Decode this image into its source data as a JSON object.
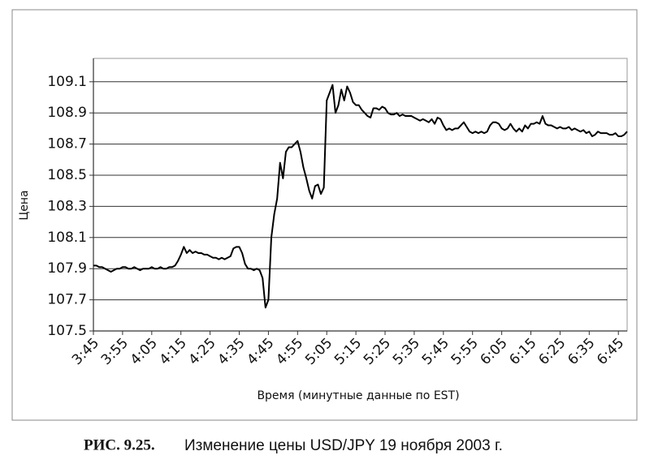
{
  "chart_data": {
    "type": "line",
    "ylabel": "Цена",
    "xlabel": "Время (минутные данные по EST)",
    "caption_number": "РИС. 9.25.",
    "caption_text": "Изменение цены USD/JPY 19 ноября 2003 г.",
    "categories": [
      "3:45",
      null,
      null,
      null,
      null,
      null,
      null,
      null,
      null,
      null,
      "3:55",
      null,
      null,
      null,
      null,
      null,
      null,
      null,
      null,
      null,
      "4:05",
      null,
      null,
      null,
      null,
      null,
      null,
      null,
      null,
      null,
      "4:15",
      null,
      null,
      null,
      null,
      null,
      null,
      null,
      null,
      null,
      "4:25",
      null,
      null,
      null,
      null,
      null,
      null,
      null,
      null,
      null,
      "4:35",
      null,
      null,
      null,
      null,
      null,
      null,
      null,
      null,
      null,
      "4:45",
      null,
      null,
      null,
      null,
      null,
      null,
      null,
      null,
      null,
      "4:55",
      null,
      null,
      null,
      null,
      null,
      null,
      null,
      null,
      null,
      "5:05",
      null,
      null,
      null,
      null,
      null,
      null,
      null,
      null,
      null,
      "5:15",
      null,
      null,
      null,
      null,
      null,
      null,
      null,
      null,
      null,
      "5:25",
      null,
      null,
      null,
      null,
      null,
      null,
      null,
      null,
      null,
      "5:35",
      null,
      null,
      null,
      null,
      null,
      null,
      null,
      null,
      null,
      "5:45",
      null,
      null,
      null,
      null,
      null,
      null,
      null,
      null,
      null,
      "5:55",
      null,
      null,
      null,
      null,
      null,
      null,
      null,
      null,
      null,
      "6:05",
      null,
      null,
      null,
      null,
      null,
      null,
      null,
      null,
      null,
      "6:15",
      null,
      null,
      null,
      null,
      null,
      null,
      null,
      null,
      null,
      "6:25",
      null,
      null,
      null,
      null,
      null,
      null,
      null,
      null,
      null,
      "6:35",
      null,
      null,
      null,
      null,
      null,
      null,
      null,
      null,
      null,
      "6:45",
      null,
      null,
      null
    ],
    "series": [
      {
        "color": "#000000",
        "values": [
          107.92,
          107.92,
          107.91,
          107.91,
          107.9,
          107.89,
          107.88,
          107.89,
          107.9,
          107.9,
          107.91,
          107.91,
          107.9,
          107.9,
          107.91,
          107.9,
          107.89,
          107.9,
          107.9,
          107.9,
          107.91,
          107.9,
          107.9,
          107.91,
          107.9,
          107.9,
          107.91,
          107.91,
          107.92,
          107.95,
          107.99,
          108.04,
          108.0,
          108.02,
          108.0,
          108.01,
          108.0,
          108.0,
          107.99,
          107.99,
          107.98,
          107.97,
          107.97,
          107.96,
          107.97,
          107.96,
          107.97,
          107.98,
          108.03,
          108.04,
          108.04,
          108.0,
          107.93,
          107.9,
          107.9,
          107.89,
          107.9,
          107.89,
          107.84,
          107.65,
          107.7,
          108.1,
          108.25,
          108.35,
          108.58,
          108.48,
          108.65,
          108.68,
          108.68,
          108.7,
          108.72,
          108.65,
          108.55,
          108.48,
          108.4,
          108.35,
          108.43,
          108.44,
          108.38,
          108.42,
          108.98,
          109.03,
          109.08,
          108.9,
          108.95,
          109.05,
          108.98,
          109.07,
          109.03,
          108.97,
          108.95,
          108.95,
          108.92,
          108.9,
          108.88,
          108.87,
          108.93,
          108.93,
          108.92,
          108.94,
          108.93,
          108.9,
          108.89,
          108.89,
          108.9,
          108.88,
          108.89,
          108.88,
          108.88,
          108.88,
          108.87,
          108.86,
          108.85,
          108.86,
          108.85,
          108.84,
          108.86,
          108.83,
          108.87,
          108.86,
          108.82,
          108.79,
          108.8,
          108.79,
          108.8,
          108.8,
          108.82,
          108.84,
          108.81,
          108.78,
          108.77,
          108.78,
          108.77,
          108.78,
          108.77,
          108.78,
          108.82,
          108.84,
          108.84,
          108.83,
          108.8,
          108.79,
          108.8,
          108.83,
          108.8,
          108.78,
          108.8,
          108.78,
          108.82,
          108.8,
          108.83,
          108.83,
          108.84,
          108.83,
          108.88,
          108.83,
          108.82,
          108.82,
          108.81,
          108.8,
          108.81,
          108.8,
          108.8,
          108.81,
          108.79,
          108.8,
          108.79,
          108.78,
          108.79,
          108.77,
          108.78,
          108.75,
          108.76,
          108.78,
          108.77,
          108.77,
          108.77,
          108.76,
          108.76,
          108.77,
          108.75,
          108.75,
          108.76,
          108.78
        ]
      }
    ],
    "ylim": [
      107.5,
      109.25
    ],
    "yticks": [
      107.5,
      107.7,
      107.9,
      108.1,
      108.3,
      108.5,
      108.7,
      108.9,
      109.1
    ],
    "grid": true
  }
}
